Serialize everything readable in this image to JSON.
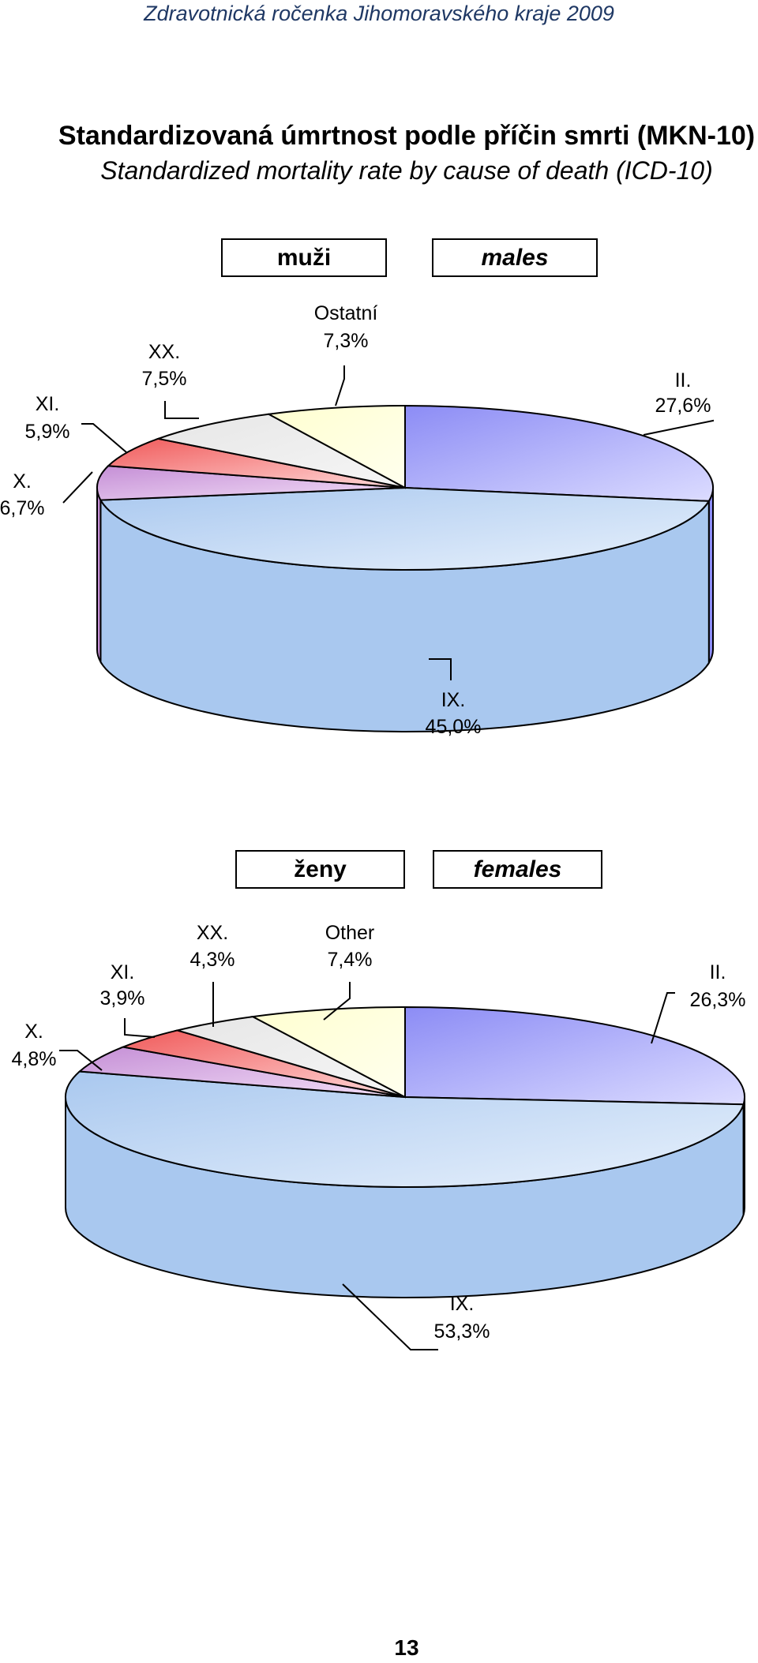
{
  "header": "Zdravotnická ročenka Jihomoravského kraje 2009",
  "title_cz": "Standardizovaná úmrtnost podle příčin smrti (MKN-10)",
  "title_en": "Standardized mortality rate by cause of death (ICD-10)",
  "page_number": "13",
  "chart_data": [
    {
      "type": "pie",
      "legend_cz": "muži",
      "legend_en": "males",
      "slices": [
        {
          "label": "II.",
          "value": 27.6,
          "value_label": "27,6%",
          "color": "#8c8cf5",
          "color_light": "#dcdcff"
        },
        {
          "label": "IX.",
          "value": 45.0,
          "value_label": "45,0%",
          "color": "#a9c8ef",
          "color_light": "#e8f1fc"
        },
        {
          "label": "X.",
          "value": 6.7,
          "value_label": "6,7%",
          "color": "#c58fd6",
          "color_light": "#f3dff7"
        },
        {
          "label": "XI.",
          "value": 5.9,
          "value_label": "5,9%",
          "color": "#f05a5a",
          "color_light": "#ffd9d9"
        },
        {
          "label": "XX.",
          "value": 7.5,
          "value_label": "7,5%",
          "color": "#e6e6e6",
          "color_light": "#f6f6f6"
        },
        {
          "label": "Ostatní",
          "value": 7.3,
          "value_label": "7,3%",
          "color": "#ffffd0",
          "color_light": "#ffffee"
        }
      ]
    },
    {
      "type": "pie",
      "legend_cz": "ženy",
      "legend_en": "females",
      "slices": [
        {
          "label": "II.",
          "value": 26.3,
          "value_label": "26,3%",
          "color": "#8c8cf5",
          "color_light": "#dcdcff"
        },
        {
          "label": "IX.",
          "value": 53.3,
          "value_label": "53,3%",
          "color": "#a9c8ef",
          "color_light": "#e8f1fc"
        },
        {
          "label": "X.",
          "value": 4.8,
          "value_label": "4,8%",
          "color": "#c58fd6",
          "color_light": "#f3dff7"
        },
        {
          "label": "XI.",
          "value": 3.9,
          "value_label": "3,9%",
          "color": "#f05a5a",
          "color_light": "#ffd9d9"
        },
        {
          "label": "XX.",
          "value": 4.3,
          "value_label": "4,3%",
          "color": "#e6e6e6",
          "color_light": "#f6f6f6"
        },
        {
          "label": "Other",
          "value": 7.4,
          "value_label": "7,4%",
          "color": "#ffffd0",
          "color_light": "#ffffee"
        }
      ]
    }
  ]
}
